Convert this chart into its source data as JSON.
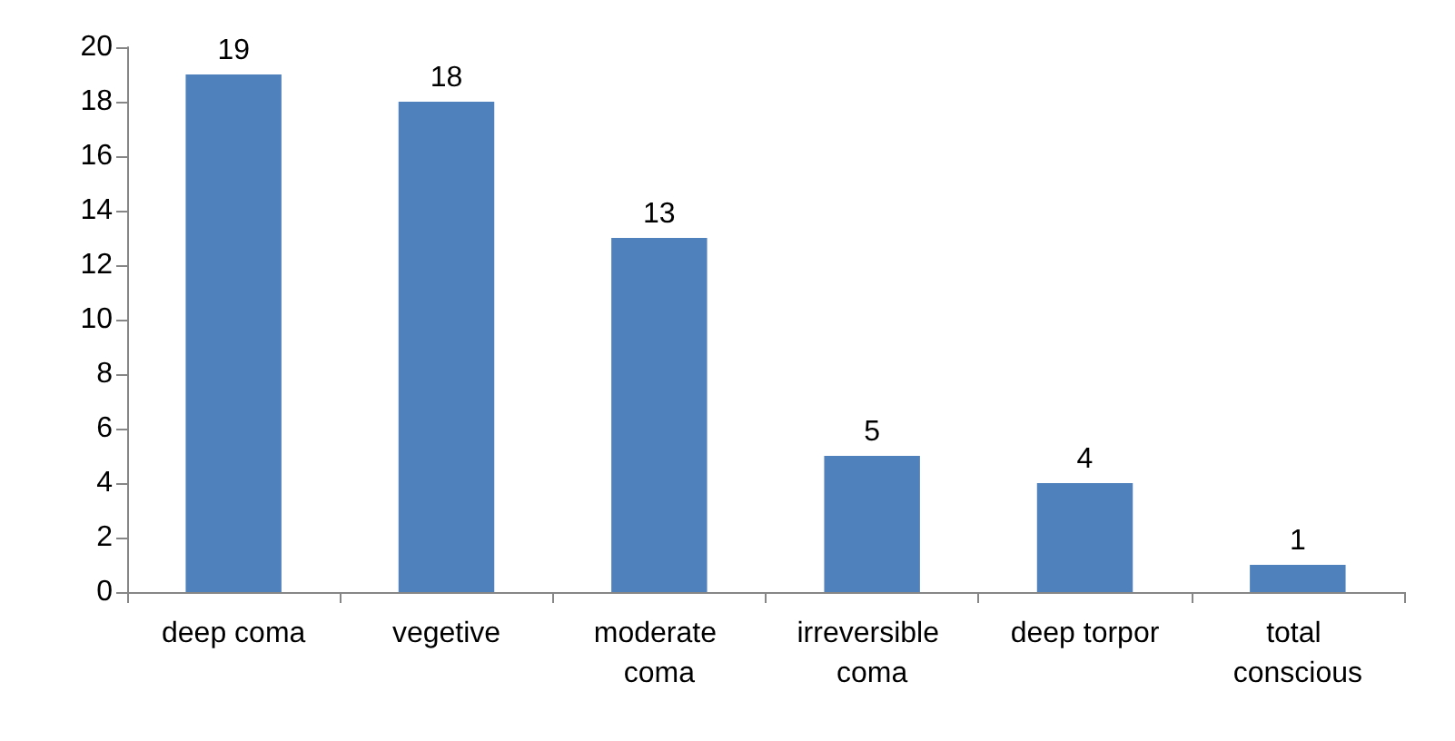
{
  "chart_data": {
    "type": "bar",
    "categories": [
      "deep coma",
      "vegetive",
      "moderate coma",
      "irreversible coma",
      "deep torpor",
      "total conscious"
    ],
    "values": [
      19,
      18,
      13,
      5,
      4,
      1
    ],
    "color": "#4f81bd",
    "ylim": [
      0,
      20
    ],
    "yticks": [
      0,
      2,
      4,
      6,
      8,
      10,
      12,
      14,
      16,
      18,
      20
    ],
    "data_labels": true
  }
}
